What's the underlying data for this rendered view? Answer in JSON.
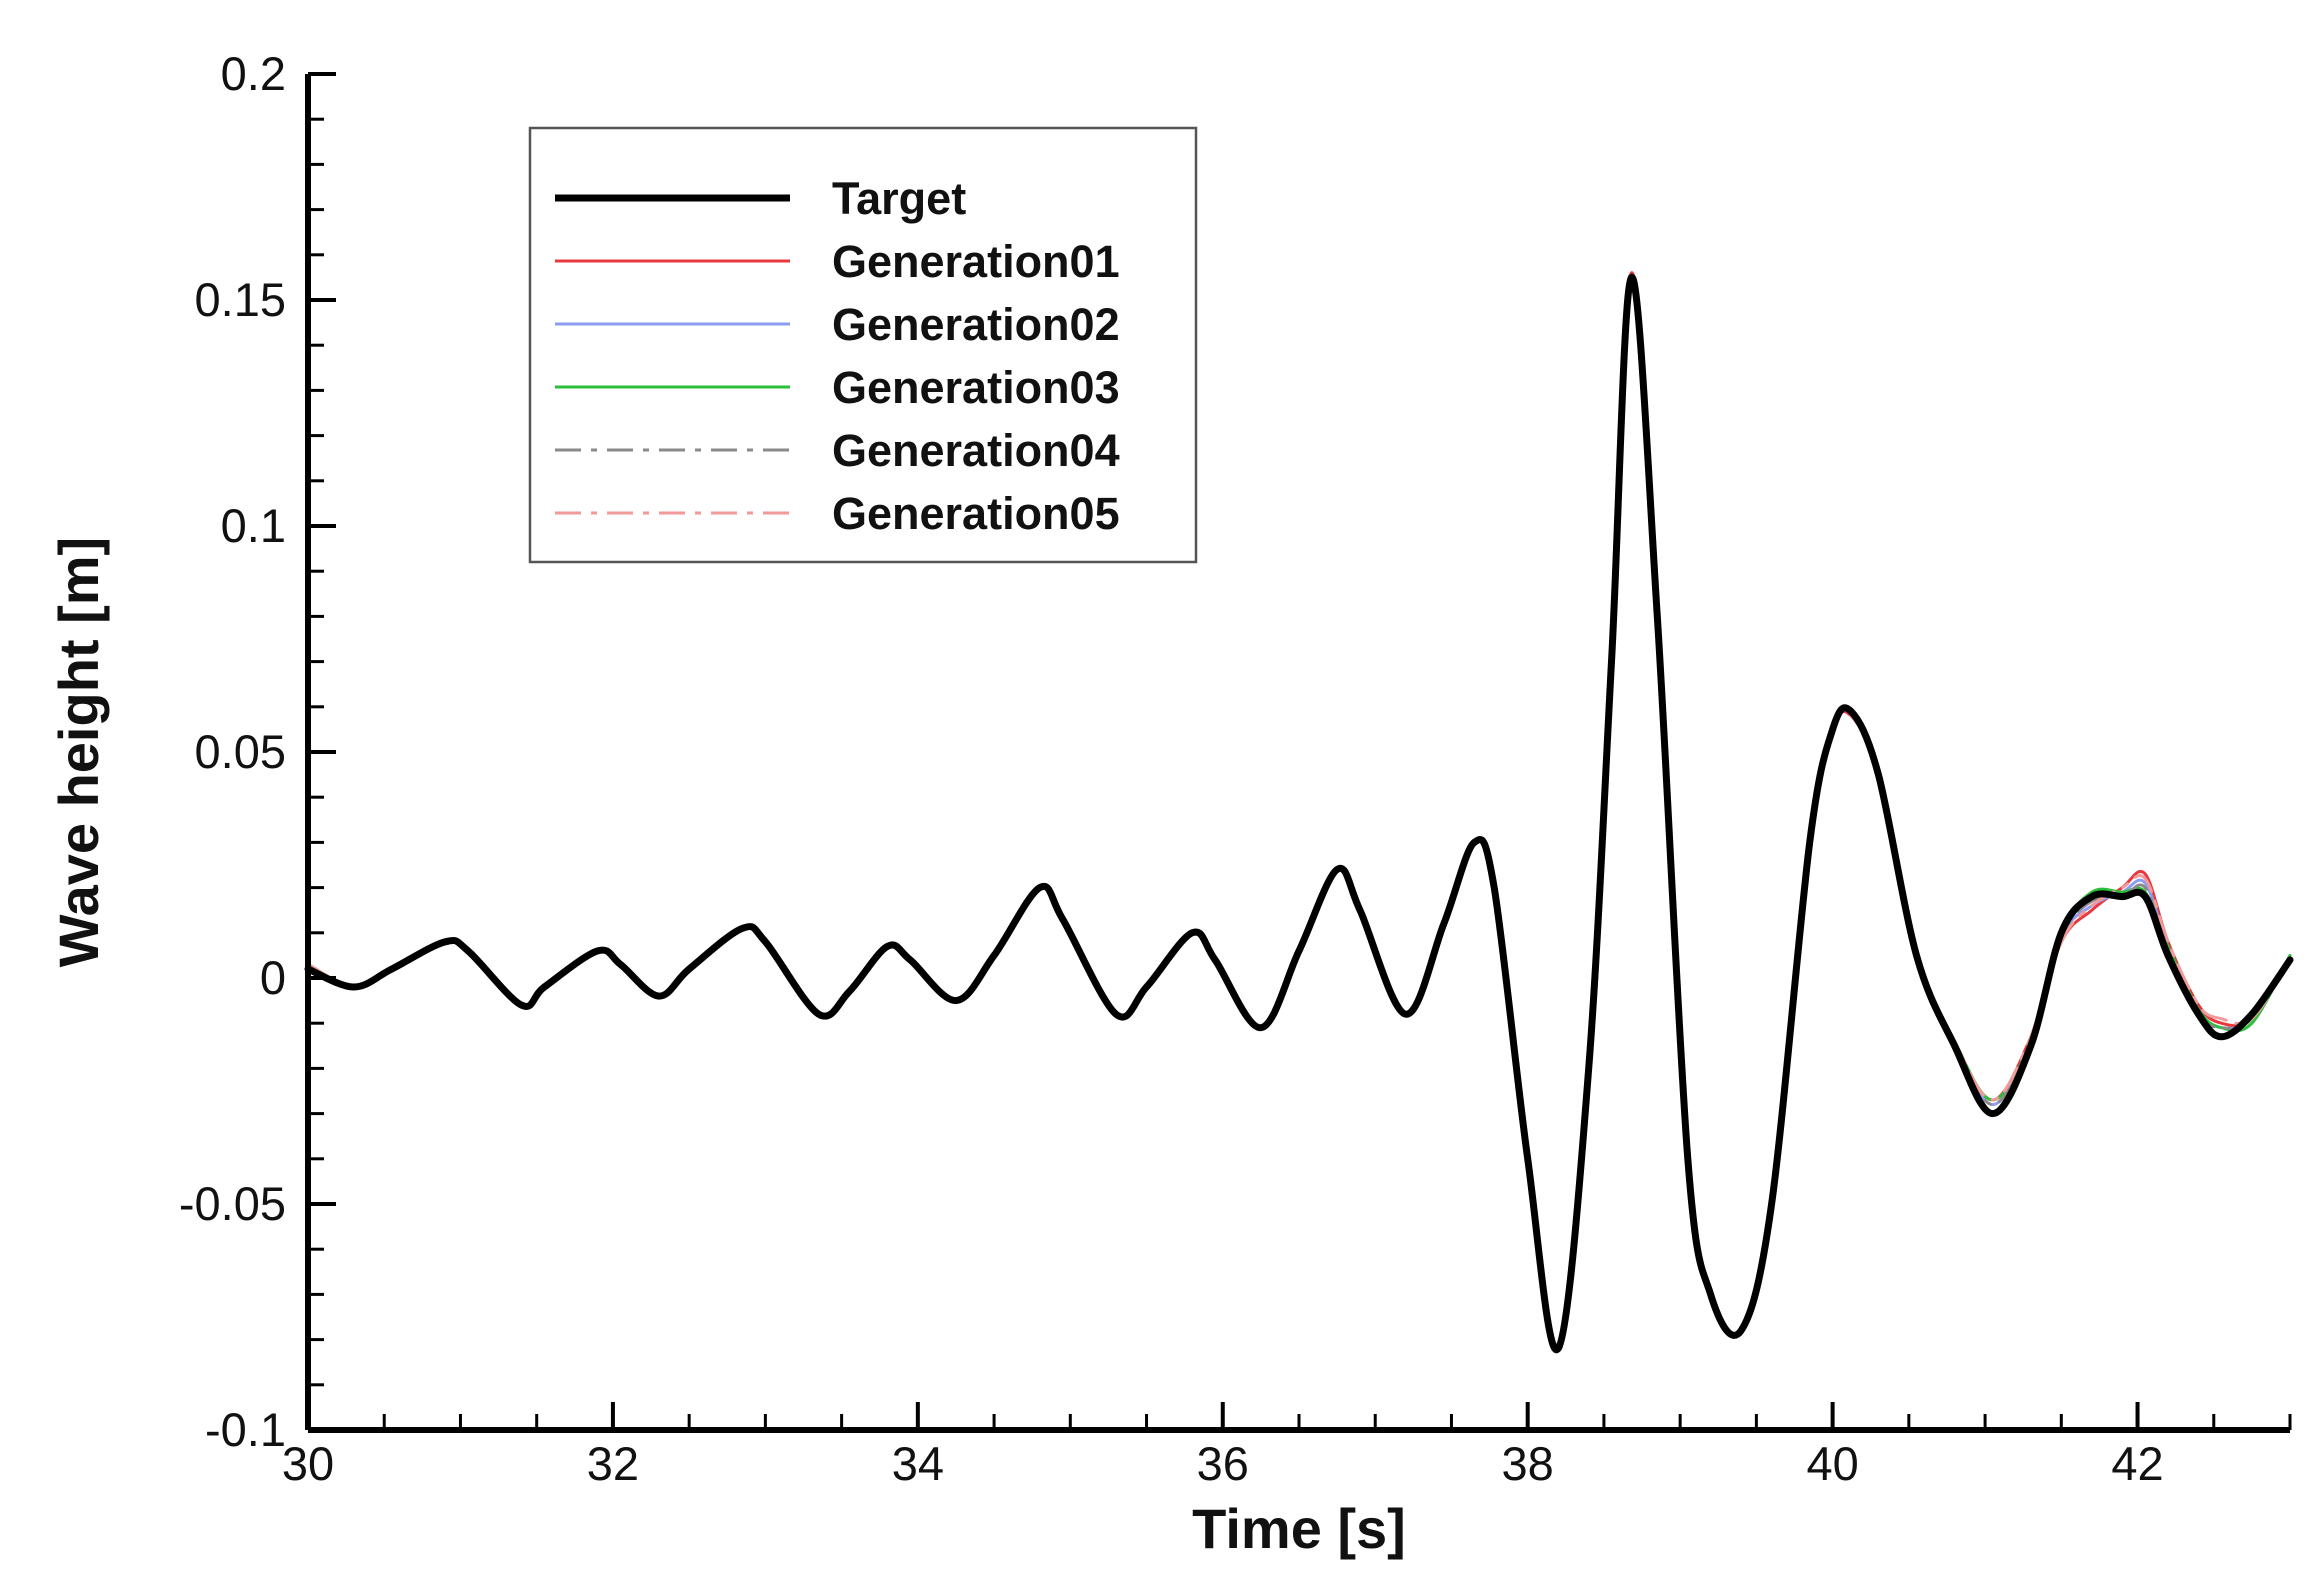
{
  "chart_data": {
    "type": "line",
    "title": "",
    "xlabel": "Time [s]",
    "ylabel": "Wave height [m]",
    "xlim": [
      30,
      43
    ],
    "ylim": [
      -0.1,
      0.2
    ],
    "xticks": [
      30,
      32,
      34,
      36,
      38,
      40,
      42
    ],
    "xtick_labels": [
      "30",
      "32",
      "34",
      "36",
      "38",
      "40",
      "42"
    ],
    "yticks": [
      -0.1,
      -0.05,
      0,
      0.05,
      0.1,
      0.15,
      0.2
    ],
    "ytick_labels": [
      "-0.1",
      "-0.05",
      "0",
      "0.05",
      "0.1",
      "0.15",
      "0.2"
    ],
    "grid": false,
    "legend_position": "top-left",
    "series": [
      {
        "name": "Target",
        "color": "#000000",
        "style": "solid",
        "x": [
          30.0,
          30.3,
          30.55,
          30.9,
          31.05,
          31.4,
          31.55,
          31.9,
          32.05,
          32.3,
          32.5,
          32.85,
          33.0,
          33.35,
          33.55,
          33.8,
          33.95,
          34.25,
          34.5,
          34.8,
          34.95,
          35.3,
          35.5,
          35.8,
          35.95,
          36.25,
          36.5,
          36.75,
          36.9,
          37.2,
          37.45,
          37.65,
          37.78,
          38.0,
          38.2,
          38.4,
          38.55,
          38.68,
          38.85,
          39.05,
          39.2,
          39.4,
          39.6,
          39.85,
          40.0,
          40.12,
          40.3,
          40.55,
          40.8,
          41.05,
          41.3,
          41.5,
          41.7,
          41.9,
          42.05,
          42.2,
          42.4,
          42.55,
          42.75,
          43.0
        ],
        "y": [
          0.002,
          -0.002,
          0.002,
          0.008,
          0.006,
          -0.006,
          -0.002,
          0.006,
          0.003,
          -0.004,
          0.002,
          0.011,
          0.008,
          -0.008,
          -0.003,
          0.007,
          0.004,
          -0.005,
          0.005,
          0.02,
          0.013,
          -0.008,
          -0.002,
          0.01,
          0.004,
          -0.011,
          0.006,
          0.024,
          0.015,
          -0.008,
          0.012,
          0.03,
          0.02,
          -0.04,
          -0.082,
          -0.02,
          0.07,
          0.155,
          0.08,
          -0.04,
          -0.07,
          -0.078,
          -0.05,
          0.03,
          0.055,
          0.059,
          0.045,
          0.005,
          -0.015,
          -0.03,
          -0.015,
          0.01,
          0.018,
          0.018,
          0.018,
          0.005,
          -0.008,
          -0.013,
          -0.008,
          0.004
        ]
      },
      {
        "name": "Generation01",
        "color": "#e8383d",
        "style": "solid",
        "x": [
          30.0,
          30.3,
          30.55,
          30.9,
          31.05,
          31.4,
          31.55,
          31.9,
          32.05,
          32.3,
          32.5,
          32.85,
          33.0,
          33.35,
          33.55,
          33.8,
          33.95,
          34.25,
          34.5,
          34.8,
          34.95,
          35.3,
          35.5,
          35.8,
          35.95,
          36.25,
          36.5,
          36.75,
          36.9,
          37.2,
          37.45,
          37.65,
          37.78,
          38.0,
          38.2,
          38.4,
          38.55,
          38.68,
          38.85,
          39.05,
          39.2,
          39.4,
          39.6,
          39.85,
          40.0,
          40.12,
          40.3,
          40.55,
          40.8,
          41.05,
          41.3,
          41.5,
          41.7,
          41.9,
          42.05,
          42.2,
          42.4,
          42.55,
          42.75,
          43.0
        ],
        "y": [
          0.003,
          -0.002,
          0.002,
          0.008,
          0.006,
          -0.006,
          -0.002,
          0.006,
          0.003,
          -0.004,
          0.002,
          0.011,
          0.008,
          -0.008,
          -0.003,
          0.007,
          0.004,
          -0.005,
          0.005,
          0.02,
          0.013,
          -0.008,
          -0.002,
          0.01,
          0.004,
          -0.011,
          0.006,
          0.024,
          0.015,
          -0.008,
          0.012,
          0.03,
          0.02,
          -0.04,
          -0.081,
          -0.02,
          0.07,
          0.156,
          0.08,
          -0.04,
          -0.07,
          -0.078,
          -0.05,
          0.03,
          0.055,
          0.058,
          0.045,
          0.006,
          -0.014,
          -0.027,
          -0.013,
          0.008,
          0.015,
          0.02,
          0.023,
          0.008,
          -0.006,
          -0.01,
          -0.009,
          0.004
        ]
      },
      {
        "name": "Generation02",
        "color": "#8c9cf2",
        "style": "solid",
        "x": [
          30.0,
          30.3,
          30.55,
          30.9,
          31.05,
          31.4,
          31.55,
          31.9,
          32.05,
          32.3,
          32.5,
          32.85,
          33.0,
          33.35,
          33.55,
          33.8,
          33.95,
          34.25,
          34.5,
          34.8,
          34.95,
          35.3,
          35.5,
          35.8,
          35.95,
          36.25,
          36.5,
          36.75,
          36.9,
          37.2,
          37.45,
          37.65,
          37.78,
          38.0,
          38.2,
          38.4,
          38.55,
          38.68,
          38.85,
          39.05,
          39.2,
          39.4,
          39.6,
          39.85,
          40.0,
          40.12,
          40.3,
          40.55,
          40.8,
          41.05,
          41.3,
          41.5,
          41.7,
          41.9,
          42.05,
          42.2,
          42.4,
          42.55,
          42.75,
          43.0
        ],
        "y": [
          0.002,
          -0.002,
          0.002,
          0.008,
          0.006,
          -0.006,
          -0.002,
          0.006,
          0.003,
          -0.004,
          0.002,
          0.011,
          0.008,
          -0.008,
          -0.003,
          0.007,
          0.004,
          -0.005,
          0.005,
          0.02,
          0.013,
          -0.008,
          -0.002,
          0.01,
          0.004,
          -0.011,
          0.006,
          0.024,
          0.015,
          -0.008,
          0.012,
          0.03,
          0.02,
          -0.04,
          -0.081,
          -0.02,
          0.07,
          0.155,
          0.08,
          -0.04,
          -0.07,
          -0.078,
          -0.05,
          0.03,
          0.055,
          0.059,
          0.045,
          0.006,
          -0.014,
          -0.028,
          -0.014,
          0.009,
          0.016,
          0.019,
          0.021,
          0.007,
          -0.007,
          -0.011,
          -0.009,
          0.004
        ]
      },
      {
        "name": "Generation03",
        "color": "#2bbf3a",
        "style": "solid",
        "x": [
          30.0,
          30.3,
          30.55,
          30.9,
          31.05,
          31.4,
          31.55,
          31.9,
          32.05,
          32.3,
          32.5,
          32.85,
          33.0,
          33.35,
          33.55,
          33.8,
          33.95,
          34.25,
          34.5,
          34.8,
          34.95,
          35.3,
          35.5,
          35.8,
          35.95,
          36.25,
          36.5,
          36.75,
          36.9,
          37.2,
          37.45,
          37.65,
          37.78,
          38.0,
          38.2,
          38.4,
          38.55,
          38.68,
          38.85,
          39.05,
          39.2,
          39.4,
          39.6,
          39.85,
          40.0,
          40.12,
          40.3,
          40.55,
          40.8,
          41.05,
          41.3,
          41.5,
          41.7,
          41.9,
          42.05,
          42.2,
          42.4,
          42.55,
          42.75,
          43.0
        ],
        "y": [
          0.002,
          -0.002,
          0.002,
          0.008,
          0.006,
          -0.006,
          -0.002,
          0.006,
          0.003,
          -0.004,
          0.002,
          0.011,
          0.008,
          -0.008,
          -0.003,
          0.007,
          0.004,
          -0.005,
          0.005,
          0.02,
          0.013,
          -0.008,
          -0.002,
          0.01,
          0.004,
          -0.011,
          0.006,
          0.024,
          0.015,
          -0.008,
          0.012,
          0.03,
          0.02,
          -0.04,
          -0.081,
          -0.02,
          0.07,
          0.154,
          0.08,
          -0.04,
          -0.07,
          -0.078,
          -0.05,
          0.03,
          0.055,
          0.059,
          0.045,
          0.006,
          -0.014,
          -0.027,
          -0.014,
          0.01,
          0.019,
          0.019,
          0.019,
          0.007,
          -0.007,
          -0.011,
          -0.01,
          0.005
        ]
      },
      {
        "name": "Generation04",
        "color": "#8a8a8a",
        "style": "dashdot",
        "x": [
          30.0,
          30.3,
          30.55,
          30.9,
          31.05,
          31.4,
          31.55,
          31.9,
          32.05,
          32.3,
          32.5,
          32.85,
          33.0,
          33.35,
          33.55,
          33.8,
          33.95,
          34.25,
          34.5,
          34.8,
          34.95,
          35.3,
          35.5,
          35.8,
          35.95,
          36.25,
          36.5,
          36.75,
          36.9,
          37.2,
          37.45,
          37.65,
          37.78,
          38.0,
          38.2,
          38.4,
          38.55,
          38.68,
          38.85,
          39.05,
          39.2,
          39.4,
          39.6,
          39.85,
          40.0,
          40.12,
          40.3,
          40.55,
          40.8,
          41.05,
          41.3,
          41.5,
          41.7,
          41.9,
          42.05,
          42.2,
          42.4,
          42.55,
          42.75,
          43.0
        ],
        "y": [
          0.002,
          -0.002,
          0.002,
          0.008,
          0.006,
          -0.006,
          -0.002,
          0.006,
          0.003,
          -0.004,
          0.002,
          0.011,
          0.008,
          -0.008,
          -0.003,
          0.007,
          0.004,
          -0.005,
          0.005,
          0.02,
          0.013,
          -0.008,
          -0.002,
          0.01,
          0.004,
          -0.011,
          0.006,
          0.024,
          0.015,
          -0.008,
          0.012,
          0.03,
          0.02,
          -0.04,
          -0.081,
          -0.02,
          0.07,
          0.155,
          0.08,
          -0.04,
          -0.07,
          -0.078,
          -0.05,
          0.03,
          0.055,
          0.059,
          0.045,
          0.006,
          -0.014,
          -0.028,
          -0.014,
          0.009,
          0.017,
          0.018,
          0.02,
          0.006,
          -0.008,
          -0.011,
          -0.009,
          0.004
        ]
      },
      {
        "name": "Generation05",
        "color": "#f29a9a",
        "style": "dashdot",
        "x": [
          30.0,
          30.3,
          30.55,
          30.9,
          31.05,
          31.4,
          31.55,
          31.9,
          32.05,
          32.3,
          32.5,
          32.85,
          33.0,
          33.35,
          33.55,
          33.8,
          33.95,
          34.25,
          34.5,
          34.8,
          34.95,
          35.3,
          35.5,
          35.8,
          35.95,
          36.25,
          36.5,
          36.75,
          36.9,
          37.2,
          37.45,
          37.65,
          37.78,
          38.0,
          38.2,
          38.4,
          38.55,
          38.68,
          38.85,
          39.05,
          39.2,
          39.4,
          39.6,
          39.85,
          40.0,
          40.12,
          40.3,
          40.55,
          40.8,
          41.05,
          41.3,
          41.5,
          41.7,
          41.9,
          42.05,
          42.2,
          42.4,
          42.55,
          42.75,
          43.0
        ],
        "y": [
          0.003,
          -0.002,
          0.002,
          0.008,
          0.006,
          -0.006,
          -0.002,
          0.006,
          0.003,
          -0.004,
          0.002,
          0.011,
          0.008,
          -0.008,
          -0.003,
          0.007,
          0.004,
          -0.005,
          0.005,
          0.02,
          0.013,
          -0.008,
          -0.002,
          0.01,
          0.004,
          -0.011,
          0.006,
          0.024,
          0.015,
          -0.008,
          0.012,
          0.03,
          0.02,
          -0.04,
          -0.081,
          -0.02,
          0.07,
          0.155,
          0.08,
          -0.04,
          -0.07,
          -0.078,
          -0.05,
          0.03,
          0.055,
          0.058,
          0.045,
          0.006,
          -0.014,
          -0.027,
          -0.013,
          0.008,
          0.016,
          0.02,
          0.022,
          0.008,
          -0.006,
          -0.009,
          -0.009,
          0.004
        ]
      }
    ]
  }
}
